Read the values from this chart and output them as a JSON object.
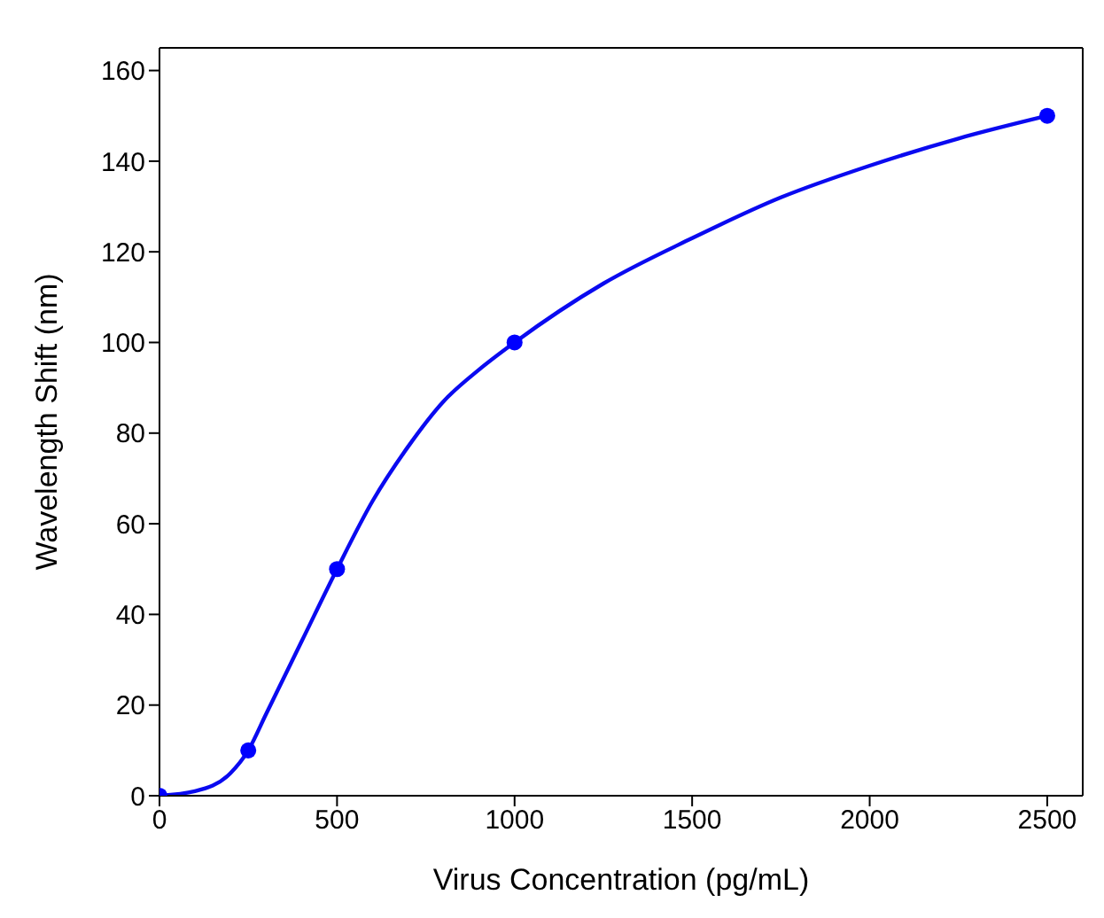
{
  "chart_data": {
    "type": "scatter",
    "xlabel": "Virus Concentration (pg/mL)",
    "ylabel": "Wavelength Shift (nm)",
    "xlim": [
      0,
      2600
    ],
    "ylim": [
      0,
      165
    ],
    "xticks": [
      0,
      500,
      1000,
      1500,
      2000,
      2500
    ],
    "yticks": [
      0,
      20,
      40,
      60,
      80,
      100,
      120,
      140,
      160
    ],
    "series": [
      {
        "type": "line",
        "color": "#0a0af0",
        "marker": "none",
        "line_style": "solid",
        "x": [
          0,
          100,
          200,
          250,
          300,
          400,
          500,
          600,
          700,
          800,
          900,
          1000,
          1250,
          1500,
          1750,
          2000,
          2250,
          2500
        ],
        "values": [
          0,
          1,
          5,
          10,
          18,
          34,
          50,
          65,
          77,
          87,
          94,
          100,
          113,
          123,
          132,
          139,
          145,
          150
        ]
      },
      {
        "color": "#0000ff",
        "marker": "circle",
        "x": [
          0,
          250,
          500,
          1000,
          2500
        ],
        "values": [
          0,
          10,
          50,
          100,
          150
        ]
      }
    ]
  }
}
